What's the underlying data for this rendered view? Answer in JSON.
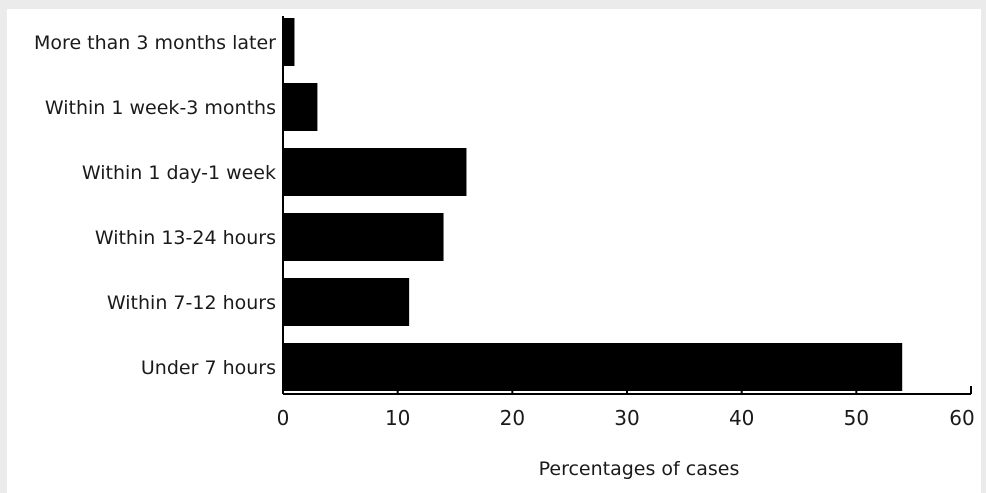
{
  "chart_data": {
    "type": "bar",
    "orientation": "horizontal",
    "categories": [
      "More than 3 months later",
      "Within 1 week-3 months",
      "Within 1 day-1 week",
      "Within 13-24 hours",
      "Within 7-12 hours",
      "Under 7 hours"
    ],
    "values": [
      1,
      3,
      16,
      14,
      11,
      54
    ],
    "xlabel": "Percentages of cases",
    "ylabel": "",
    "xlim": [
      0,
      60
    ],
    "xticks": [
      "0",
      "10",
      "20",
      "30",
      "40",
      "50",
      "60"
    ],
    "grid": false,
    "bar_color": "#000000"
  }
}
